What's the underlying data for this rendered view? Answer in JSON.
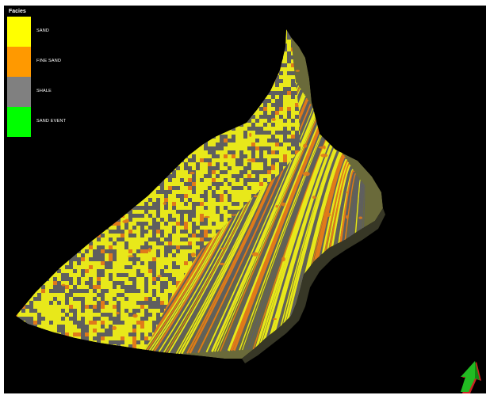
{
  "legend": {
    "title": "Facies",
    "items": [
      {
        "label": "SAND",
        "color": "#ffff00"
      },
      {
        "label": "FINE SAND",
        "color": "#ff9900"
      },
      {
        "label": "SHALE",
        "color": "#808080"
      },
      {
        "label": "SAND EVENT",
        "color": "#00ff00"
      }
    ]
  },
  "colors": {
    "background": "#000000",
    "sand": "#e8e81a",
    "fine_sand": "#e07a1a",
    "shale": "#5f5f5f",
    "arrow_primary": "#22bb22",
    "arrow_secondary": "#cc2222"
  },
  "orientation_icon": "north-arrow-icon"
}
